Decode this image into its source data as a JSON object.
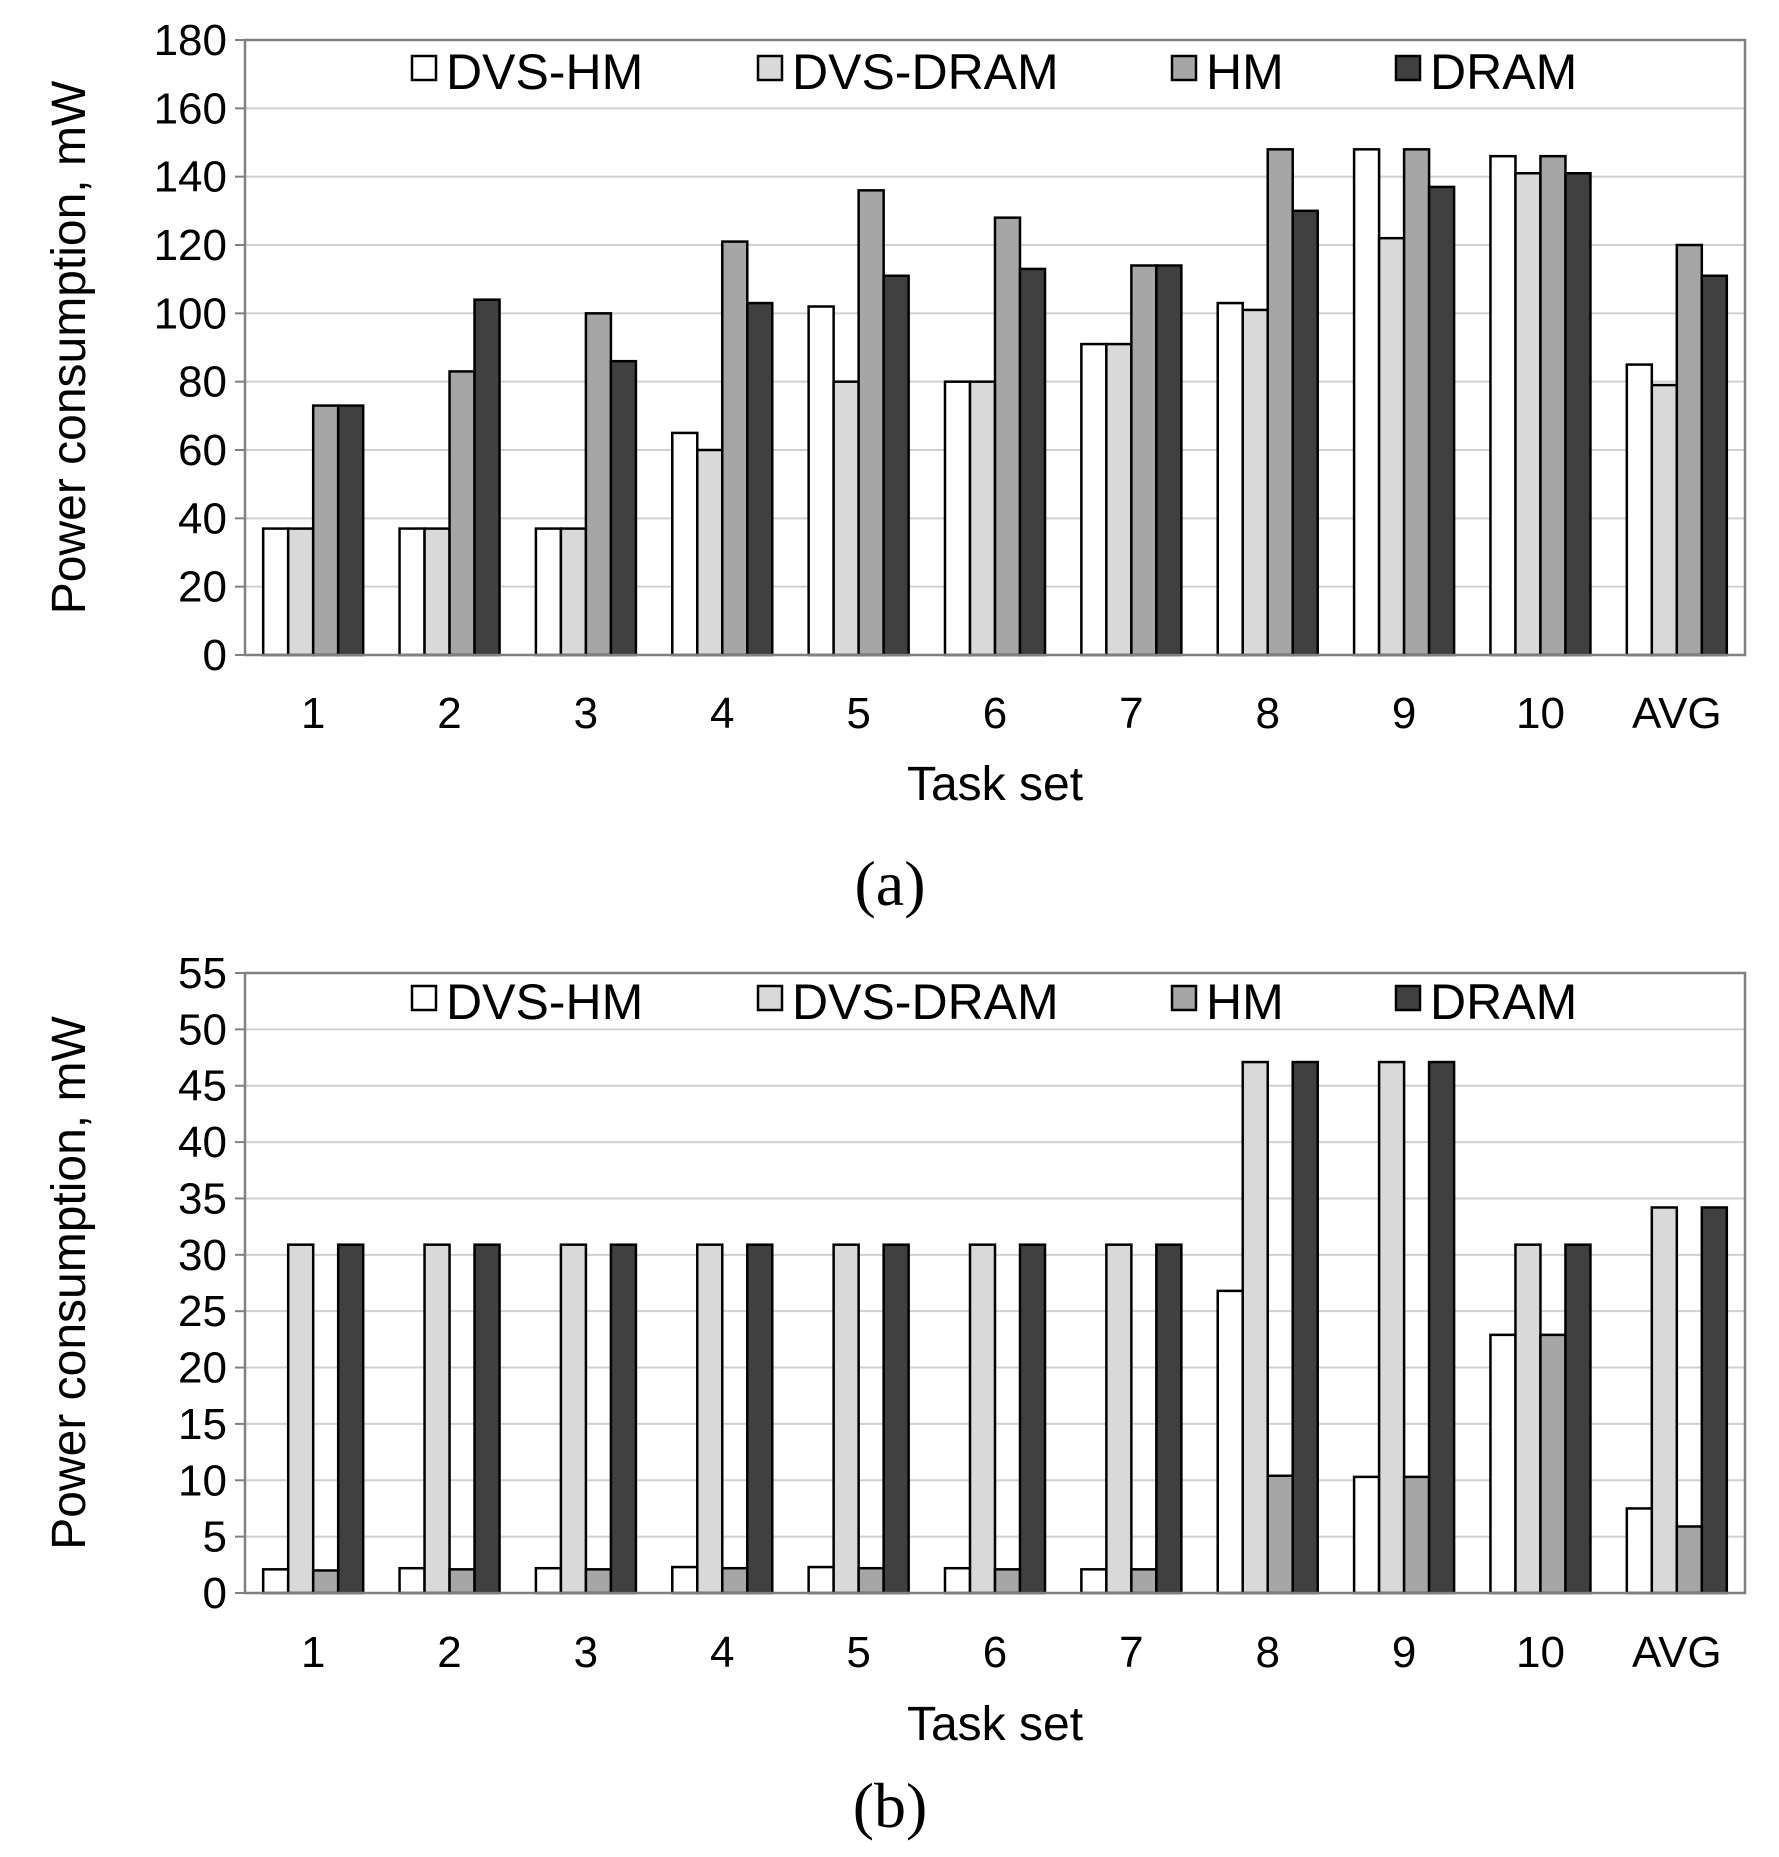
{
  "chart_data": [
    {
      "type": "bar",
      "panel_label": "(a)",
      "xlabel": "Task set",
      "ylabel": "Power consumption, mW",
      "ylim": [
        0,
        180
      ],
      "yticks": [
        0,
        20,
        40,
        60,
        80,
        100,
        120,
        140,
        160,
        180
      ],
      "categories": [
        "1",
        "2",
        "3",
        "4",
        "5",
        "6",
        "7",
        "8",
        "9",
        "10",
        "AVG"
      ],
      "legend_position": "top",
      "grid": true,
      "series": [
        {
          "name": "DVS-HM",
          "color": "#ffffff",
          "values": [
            37,
            37,
            37,
            65,
            102,
            80,
            91,
            103,
            148,
            146,
            85
          ]
        },
        {
          "name": "DVS-DRAM",
          "color": "#d9d9d9",
          "values": [
            37,
            37,
            37,
            60,
            80,
            80,
            91,
            101,
            122,
            141,
            79
          ]
        },
        {
          "name": "HM",
          "color": "#a6a6a6",
          "values": [
            73,
            83,
            100,
            121,
            136,
            128,
            114,
            148,
            148,
            146,
            120
          ]
        },
        {
          "name": "DRAM",
          "color": "#404040",
          "values": [
            73,
            104,
            86,
            103,
            111,
            113,
            114,
            130,
            137,
            141,
            111
          ]
        }
      ]
    },
    {
      "type": "bar",
      "panel_label": "(b)",
      "xlabel": "Task set",
      "ylabel": "Power consumption, mW",
      "ylim": [
        0,
        55
      ],
      "yticks": [
        0,
        5,
        10,
        15,
        20,
        25,
        30,
        35,
        40,
        45,
        50,
        55
      ],
      "categories": [
        "1",
        "2",
        "3",
        "4",
        "5",
        "6",
        "7",
        "8",
        "9",
        "10",
        "AVG"
      ],
      "legend_position": "top",
      "grid": true,
      "series": [
        {
          "name": "DVS-HM",
          "color": "#ffffff",
          "values": [
            2.1,
            2.2,
            2.2,
            2.3,
            2.3,
            2.2,
            2.1,
            26.8,
            10.3,
            22.9,
            7.5
          ]
        },
        {
          "name": "DVS-DRAM",
          "color": "#d9d9d9",
          "values": [
            30.9,
            30.9,
            30.9,
            30.9,
            30.9,
            30.9,
            30.9,
            47.1,
            47.1,
            30.9,
            34.2
          ]
        },
        {
          "name": "HM",
          "color": "#a6a6a6",
          "values": [
            2.0,
            2.1,
            2.1,
            2.2,
            2.2,
            2.1,
            2.1,
            10.4,
            10.3,
            22.9,
            5.9
          ]
        },
        {
          "name": "DRAM",
          "color": "#404040",
          "values": [
            30.9,
            30.9,
            30.9,
            30.9,
            30.9,
            30.9,
            30.9,
            47.1,
            47.1,
            30.9,
            34.2
          ]
        }
      ]
    }
  ]
}
